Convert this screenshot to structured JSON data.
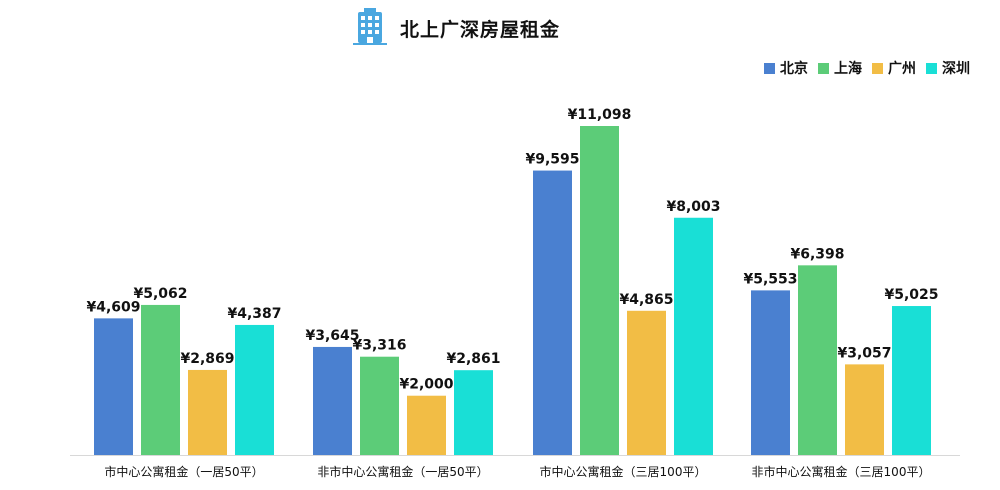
{
  "chart_data": {
    "type": "bar",
    "title": "北上广深房屋租金",
    "title_icon": "building-icon",
    "categories": [
      "市中心公寓租金（一居50平）",
      "非市中心公寓租金（一居50平）",
      "市中心公寓租金（三居100平）",
      "非市中心公寓租金（三居100平）"
    ],
    "series": [
      {
        "name": "北京",
        "color": "#4a80d0",
        "values": [
          4609,
          3645,
          9595,
          5553
        ]
      },
      {
        "name": "上海",
        "color": "#5ccc78",
        "values": [
          5062,
          3316,
          11098,
          6398
        ]
      },
      {
        "name": "广州",
        "color": "#f2bd45",
        "values": [
          2869,
          2000,
          4865,
          3057
        ]
      },
      {
        "name": "深圳",
        "color": "#19dfd6",
        "values": [
          4387,
          2861,
          8003,
          5025
        ]
      }
    ],
    "value_labels": [
      [
        "¥4,609",
        "¥3,645",
        "¥9,595",
        "¥5,553"
      ],
      [
        "¥5,062",
        "¥3,316",
        "¥11,098",
        "¥6,398"
      ],
      [
        "¥2,869",
        "¥2,000",
        "¥4,865",
        "¥3,057"
      ],
      [
        "¥4,387",
        "¥2,861",
        "¥8,003",
        "¥5,025"
      ]
    ],
    "ylim": [
      0,
      11098
    ],
    "grid": false,
    "legend_position": "top-right"
  }
}
